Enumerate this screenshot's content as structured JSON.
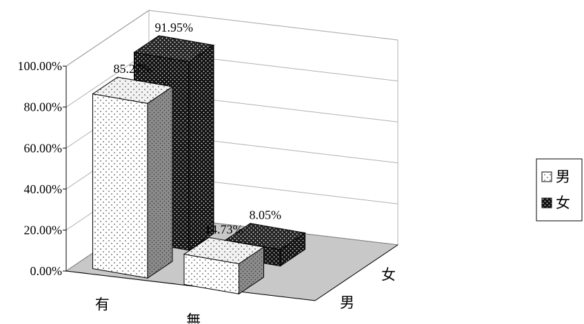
{
  "chart_data": {
    "type": "bar",
    "title": "",
    "xlabel": "",
    "ylabel": "",
    "categories": [
      "有",
      "無"
    ],
    "series": [
      {
        "name": "男",
        "values": [
          85.27,
          14.73
        ],
        "pattern": "light-dots"
      },
      {
        "name": "女",
        "values": [
          91.95,
          8.05
        ],
        "pattern": "dark-dots"
      }
    ],
    "ylim": [
      0,
      100
    ],
    "yticks": [
      0,
      20,
      40,
      60,
      80,
      100
    ],
    "ytick_labels": [
      "0.00%",
      "20.00%",
      "40.00%",
      "60.00%",
      "80.00%",
      "100.00%"
    ],
    "data_labels": [
      [
        "85.27%",
        "14.73%"
      ],
      [
        "91.95%",
        "8.05%"
      ]
    ],
    "depth_labels": [
      "男",
      "女"
    ],
    "grid": true,
    "legend_position": "right",
    "projection": "3d"
  },
  "colors": {
    "light_face": "#ffffff",
    "light_side": "#8c8c8c",
    "dark_face": "#111111",
    "floor": "#c8c8c8",
    "grid": "#b0b0b0",
    "axis": "#000000"
  }
}
